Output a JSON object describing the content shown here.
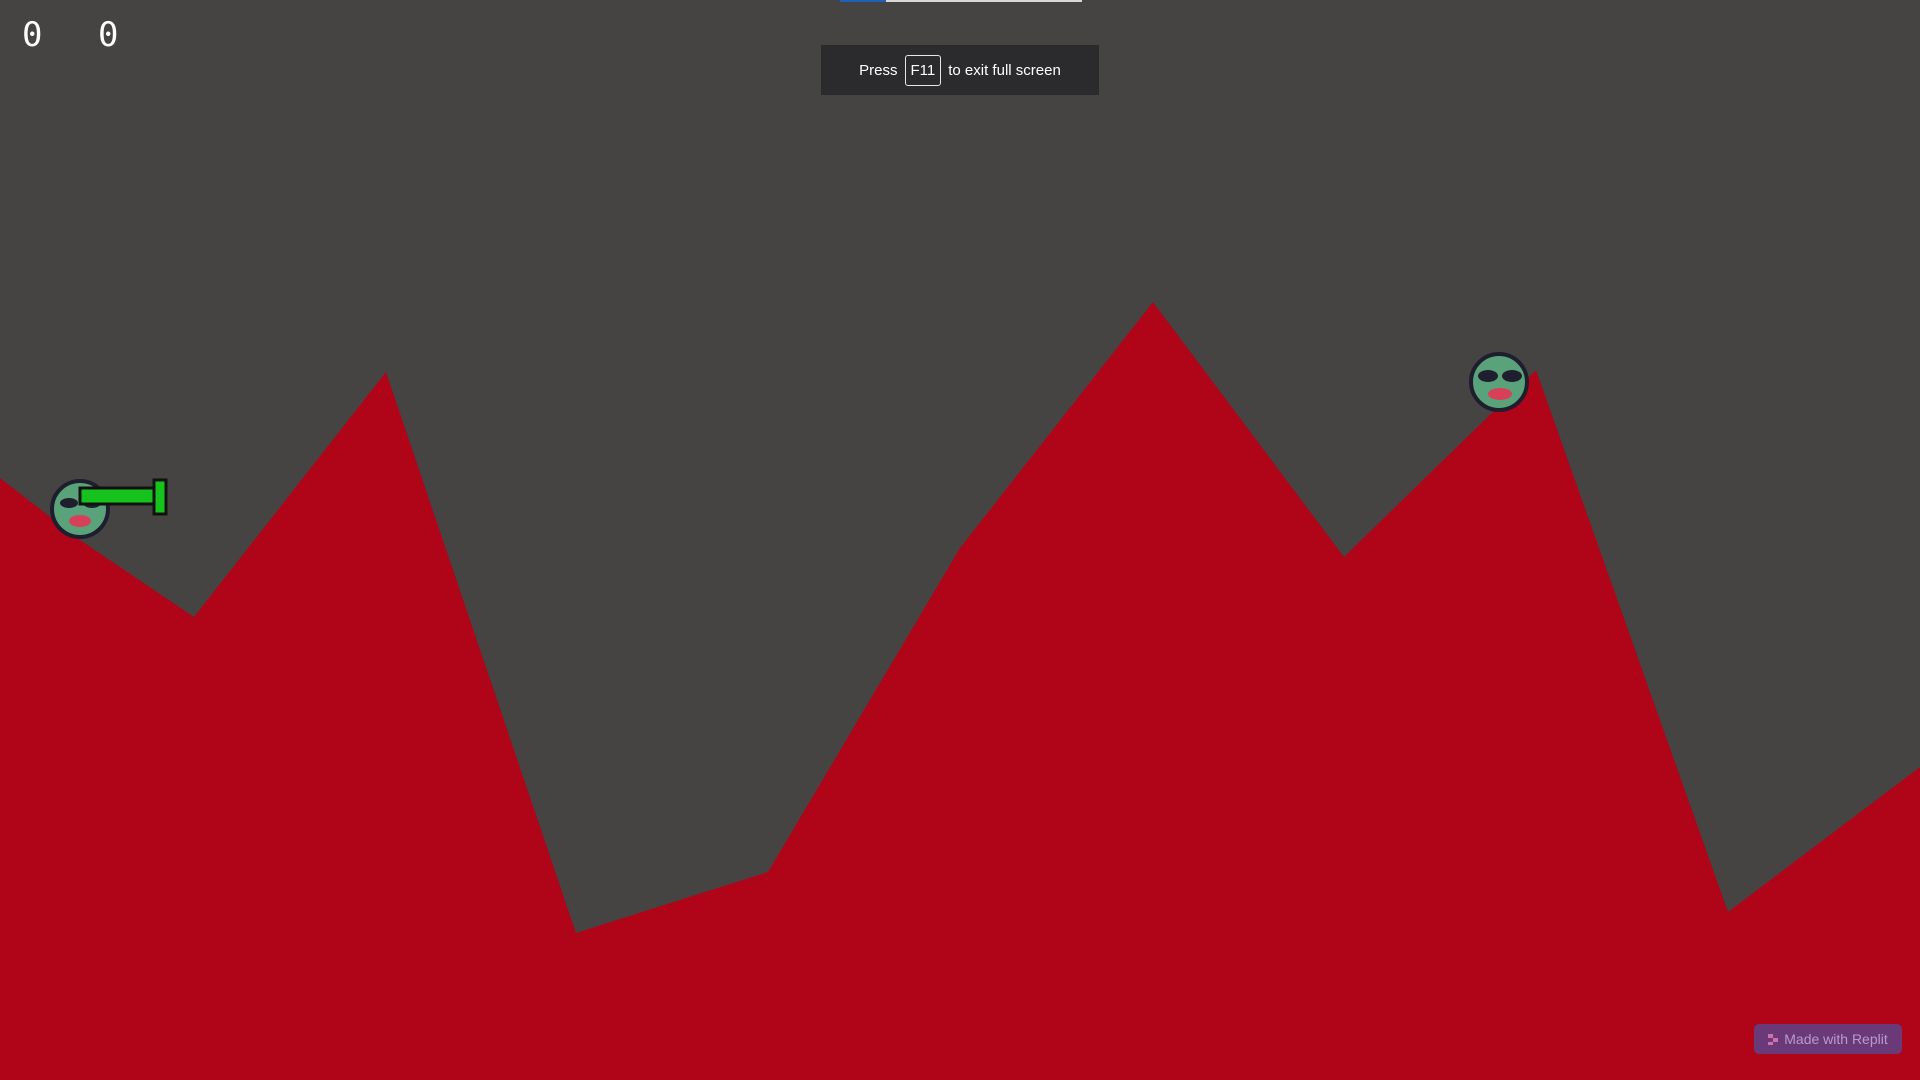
{
  "scores": {
    "left": "0",
    "right": "0"
  },
  "fullscreen_notice": {
    "before": "Press",
    "key": "F11",
    "after": "to exit full screen"
  },
  "loading_progress": 0.19,
  "badge": {
    "label": "Made with Replit",
    "icon": "replit-icon"
  },
  "colors": {
    "sky": "#464343",
    "terrain": "#b00419",
    "player_body": "#5aa37a",
    "player_outline": "#1e1e2e",
    "weapon": "#16c21c"
  },
  "players": [
    {
      "name": "player-left",
      "has_weapon": true
    },
    {
      "name": "player-right",
      "has_weapon": false
    }
  ]
}
